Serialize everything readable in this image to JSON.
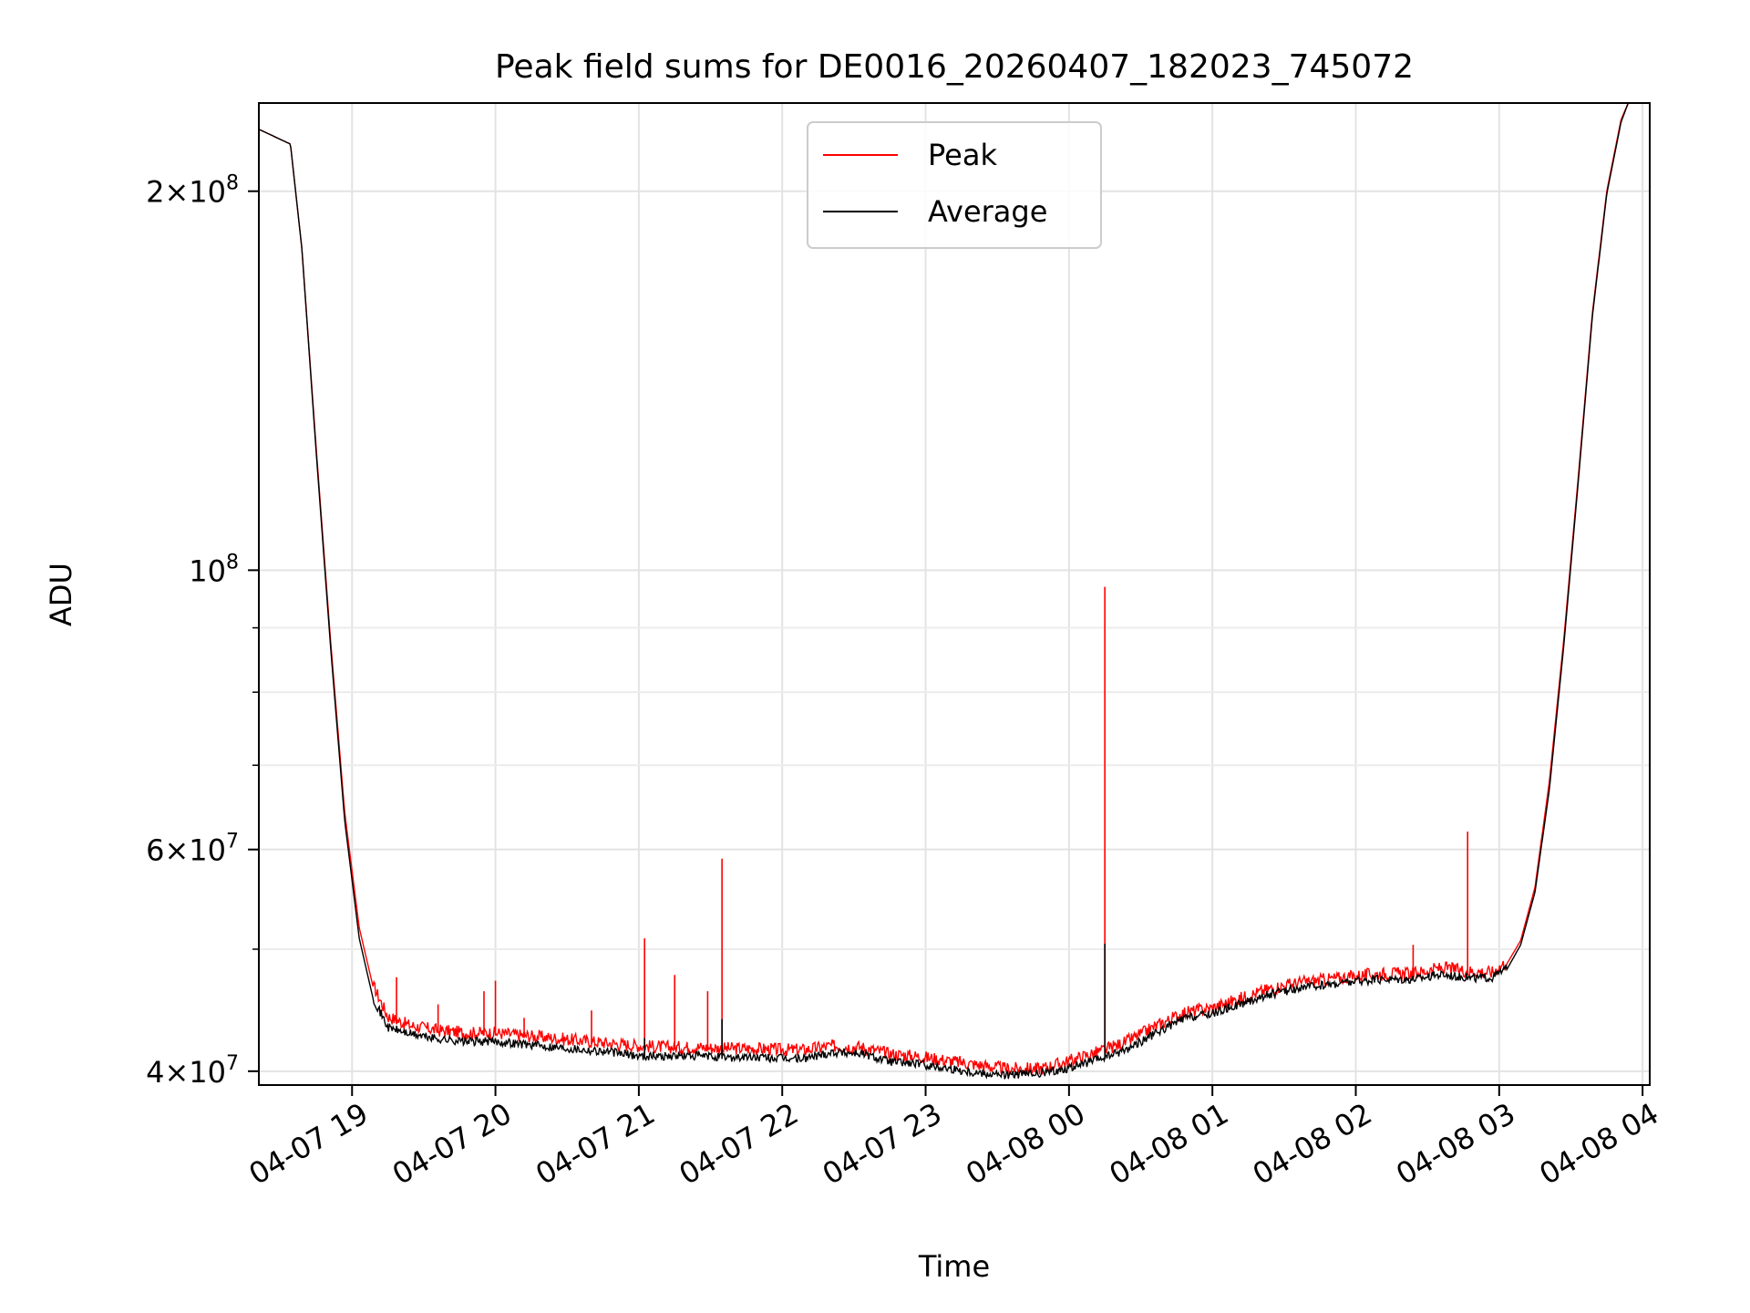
{
  "chart_data": {
    "type": "line",
    "title": "Peak field sums for DE0016_20260407_182023_745072",
    "xlabel": "Time",
    "ylabel": "ADU",
    "yscale": "log",
    "ylim": [
      39000000,
      235000000
    ],
    "xlim_hours": [
      18.35,
      28.05
    ],
    "grid": true,
    "legend_position": "upper-center",
    "x_ticks": [
      {
        "label": "04-07 19",
        "hour": 19
      },
      {
        "label": "04-07 20",
        "hour": 20
      },
      {
        "label": "04-07 21",
        "hour": 21
      },
      {
        "label": "04-07 22",
        "hour": 22
      },
      {
        "label": "04-07 23",
        "hour": 23
      },
      {
        "label": "04-08 00",
        "hour": 24
      },
      {
        "label": "04-08 01",
        "hour": 25
      },
      {
        "label": "04-08 02",
        "hour": 26
      },
      {
        "label": "04-08 03",
        "hour": 27
      },
      {
        "label": "04-08 04",
        "hour": 28
      }
    ],
    "y_ticks": [
      {
        "value": 40000000,
        "mant": "4",
        "exp": "7",
        "base_only": false
      },
      {
        "value": 60000000,
        "mant": "6",
        "exp": "7",
        "base_only": false
      },
      {
        "value": 100000000,
        "mant": "",
        "exp": "8",
        "base_only": true
      },
      {
        "value": 200000000,
        "mant": "2",
        "exp": "8",
        "base_only": false
      }
    ],
    "y_minor_ticks": [
      50000000,
      70000000,
      80000000,
      90000000
    ],
    "series": [
      {
        "name": "Peak",
        "color": "#ff0000",
        "hours": [
          18.35,
          18.57,
          18.65,
          18.75,
          18.85,
          18.95,
          19.05,
          19.15,
          19.25,
          19.4,
          19.6,
          19.8,
          20.0,
          20.2,
          20.5,
          20.8,
          21.0,
          21.2,
          21.4,
          21.6,
          21.8,
          22.0,
          22.15,
          22.35,
          22.55,
          22.75,
          22.95,
          23.15,
          23.35,
          23.55,
          23.8,
          23.95,
          24.1,
          24.25,
          24.4,
          24.6,
          24.8,
          25.0,
          25.2,
          25.4,
          25.6,
          25.8,
          26.0,
          26.2,
          26.4,
          26.6,
          26.8,
          26.95,
          27.05,
          27.15,
          27.25,
          27.35,
          27.45,
          27.55,
          27.65,
          27.75,
          27.85,
          27.9
        ],
        "values": [
          224000000,
          218000000,
          180000000,
          125000000,
          88000000,
          64000000,
          52000000,
          46500000,
          44000000,
          43300000,
          42900000,
          42700000,
          42700000,
          42500000,
          42200000,
          41900000,
          41700000,
          41600000,
          41600000,
          41500000,
          41500000,
          41400000,
          41400000,
          41700000,
          41600000,
          41100000,
          40900000,
          40600000,
          40300000,
          40000000,
          40000000,
          40400000,
          40900000,
          41400000,
          42000000,
          43200000,
          44300000,
          44700000,
          45500000,
          46300000,
          46800000,
          47100000,
          47400000,
          47600000,
          47600000,
          48100000,
          47800000,
          47700000,
          48600000,
          50800000,
          56000000,
          68000000,
          88000000,
          118000000,
          160000000,
          200000000,
          228000000,
          235000000
        ],
        "spikes": [
          {
            "hour": 19.31,
            "value": 47500000
          },
          {
            "hour": 19.6,
            "value": 45200000
          },
          {
            "hour": 19.92,
            "value": 46300000
          },
          {
            "hour": 20.0,
            "value": 47200000
          },
          {
            "hour": 20.2,
            "value": 44100000
          },
          {
            "hour": 20.67,
            "value": 44700000
          },
          {
            "hour": 21.04,
            "value": 51000000
          },
          {
            "hour": 21.25,
            "value": 47700000
          },
          {
            "hour": 21.48,
            "value": 46300000
          },
          {
            "hour": 21.58,
            "value": 59000000
          },
          {
            "hour": 24.25,
            "value": 97000000
          },
          {
            "hour": 26.4,
            "value": 50400000
          },
          {
            "hour": 26.78,
            "value": 62000000
          }
        ]
      },
      {
        "name": "Average",
        "color": "#000000",
        "hours": [
          18.35,
          18.57,
          18.65,
          18.75,
          18.85,
          18.95,
          19.05,
          19.15,
          19.25,
          19.4,
          19.6,
          19.8,
          20.0,
          20.2,
          20.5,
          20.8,
          21.0,
          21.2,
          21.4,
          21.6,
          21.8,
          22.0,
          22.15,
          22.35,
          22.55,
          22.75,
          22.95,
          23.15,
          23.35,
          23.55,
          23.8,
          23.95,
          24.1,
          24.25,
          24.4,
          24.6,
          24.8,
          25.0,
          25.2,
          25.4,
          25.6,
          25.8,
          26.0,
          26.2,
          26.4,
          26.6,
          26.8,
          26.95,
          27.05,
          27.15,
          27.25,
          27.35,
          27.45,
          27.55,
          27.65,
          27.75,
          27.85,
          27.9
        ],
        "values": [
          224000000,
          218000000,
          180000000,
          124000000,
          87000000,
          63000000,
          51000000,
          45500000,
          43200000,
          42700000,
          42300000,
          42100000,
          42100000,
          41900000,
          41600000,
          41300000,
          41000000,
          41000000,
          41000000,
          40900000,
          40900000,
          40800000,
          40800000,
          41300000,
          41200000,
          40600000,
          40400000,
          40100000,
          39800000,
          39600000,
          39700000,
          40000000,
          40400000,
          40900000,
          41500000,
          42700000,
          43900000,
          44300000,
          45100000,
          45900000,
          46400000,
          46700000,
          47000000,
          47200000,
          47200000,
          47600000,
          47300000,
          47300000,
          48100000,
          50400000,
          55500000,
          67000000,
          87000000,
          117000000,
          159000000,
          199000000,
          227000000,
          235000000
        ],
        "spikes": [
          {
            "hour": 24.25,
            "value": 50500000
          },
          {
            "hour": 21.58,
            "value": 44000000
          },
          {
            "hour": 21.04,
            "value": 42500000
          }
        ]
      }
    ]
  }
}
